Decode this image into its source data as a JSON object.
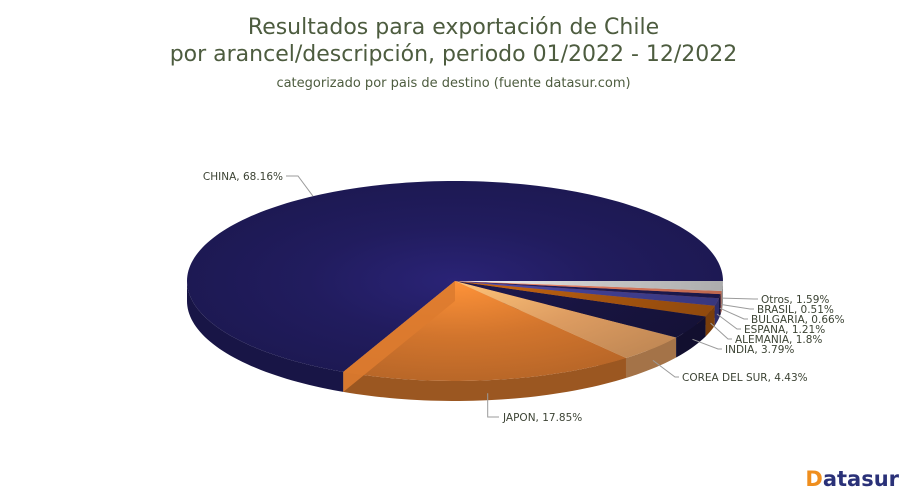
{
  "header": {
    "title_line1": "Resultados para exportación de Chile",
    "title_line2": "por arancel/descripción, periodo 01/2022 - 12/2022",
    "subtitle": "categorizado por pais de destino (fuente datasur.com)"
  },
  "chart_data": {
    "type": "pie",
    "style": "3d",
    "title": "Resultados para exportación de Chile por arancel/descripción, periodo 01/2022 - 12/2022",
    "subtitle": "categorizado por pais de destino (fuente datasur.com)",
    "unit": "%",
    "label_format": "{label}, {value}%",
    "legend": false,
    "slices": [
      {
        "label": "CHINA",
        "value": 68.16,
        "color": "#211c5e"
      },
      {
        "label": "JAPON",
        "value": 17.85,
        "color": "#d2752d"
      },
      {
        "label": "COREA DEL SUR",
        "value": 4.43,
        "color": "#dd9c61"
      },
      {
        "label": "INDIA",
        "value": 3.79,
        "color": "#181440"
      },
      {
        "label": "ALEMANIA",
        "value": 1.8,
        "color": "#a5540f"
      },
      {
        "label": "ESPANA",
        "value": 1.21,
        "color": "#403e8f"
      },
      {
        "label": "BULGARIA",
        "value": 0.66,
        "color": "#1d1a52"
      },
      {
        "label": "BRASIL",
        "value": 0.51,
        "color": "#d8765a"
      },
      {
        "label": "Otros",
        "value": 1.59,
        "color": "#c5c5c5"
      }
    ]
  },
  "footer": {
    "logo_accent": "D",
    "logo_rest": "atasur"
  }
}
